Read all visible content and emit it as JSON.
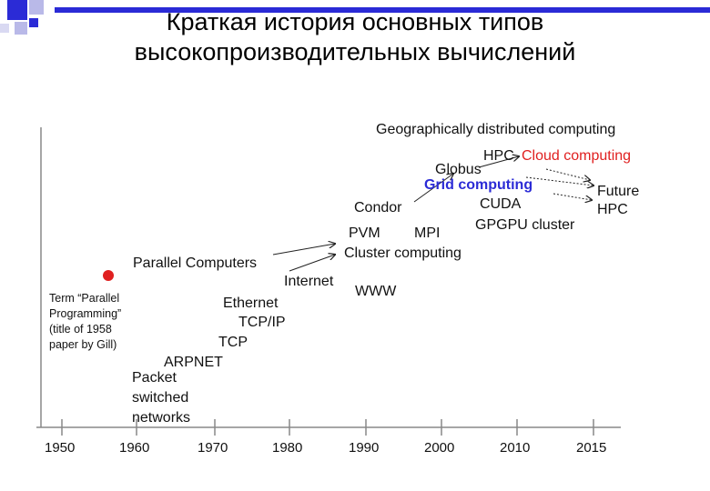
{
  "slide": {
    "title_line1": "Краткая история основных типов",
    "title_line2": "высокопроизводительных вычислений"
  },
  "diagram": {
    "years": [
      "1950",
      "1960",
      "1970",
      "1980",
      "1990",
      "2000",
      "2010",
      "2015"
    ],
    "labels": {
      "geo": "Geographically distributed computing",
      "hpc": "HPC",
      "cloud": "Cloud computing",
      "globus": "Globus",
      "grid": "Grid computing",
      "condor": "Condor",
      "cuda": "CUDA",
      "future": "Future",
      "future_hpc": "HPC",
      "pvm": "PVM",
      "mpi": "MPI",
      "gpgpu": "GPGPU cluster",
      "cluster": "Cluster computing",
      "parallel": "Parallel Computers",
      "internet": "Internet",
      "www": "WWW",
      "term1": "Term “Parallel",
      "term2": "Programming”",
      "term3": "(title of 1958",
      "term4": "paper by Gill)",
      "ethernet": "Ethernet",
      "tcpip": "TCP/IP",
      "tcp": "TCP",
      "arpnet": "ARPNET",
      "packet1": "Packet",
      "packet2": "switched",
      "packet3": "networks"
    },
    "colors": {
      "accent": "#2b2bd6",
      "cloud": "#e02020",
      "dot": "#e02020"
    }
  }
}
